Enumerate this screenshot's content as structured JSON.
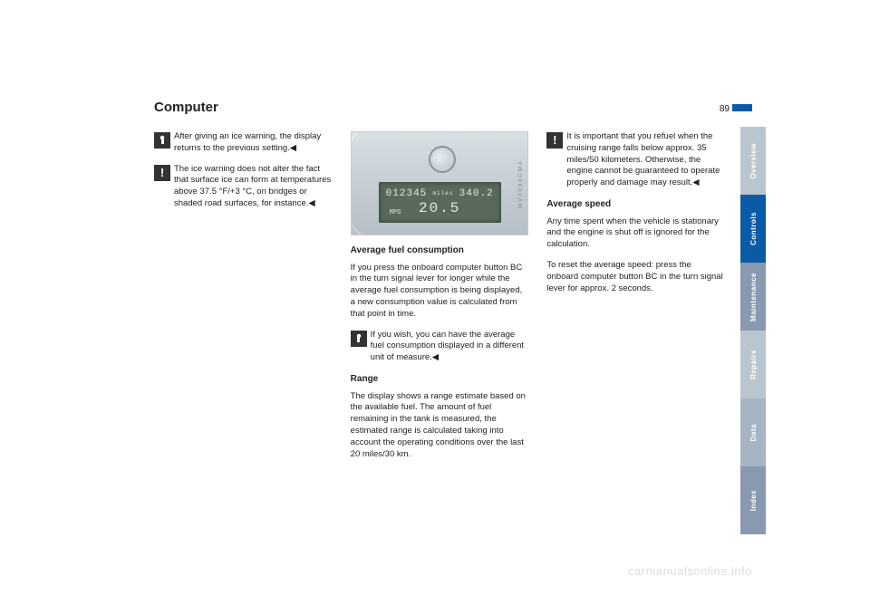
{
  "page": {
    "title": "Computer",
    "number": "89"
  },
  "col1": {
    "p1": "After giving an ice warning, the display returns to the previous setting.◀",
    "p2": "The ice warning does not alter the fact that surface ice can form at temperatures above 37.5 °F/+3 °C, on bridges or shaded road surfaces, for instance.◀"
  },
  "dash": {
    "line1_left": "012345",
    "line1_mid": "miles",
    "line1_right": "340.2",
    "line2": "20.5",
    "unit": "MPG",
    "ref": "MV0098CMA"
  },
  "col2": {
    "h1": "Average fuel consumption",
    "p1": "If you press the onboard computer button BC in the turn signal lever for longer while the average fuel consumption is being displayed, a new consumption value is calculated from that point in time.",
    "p2": "If you wish, you can have the average fuel consumption displayed in a different unit of measure.◀",
    "h2": "Range",
    "p3": "The display shows a range estimate based on the available fuel. The amount of fuel remaining in the tank is measured, the estimated range is calculated taking into account the operating conditions over the last 20 miles/30 km."
  },
  "col3": {
    "p1": "It is important that you refuel when the cruising range falls below approx. 35 miles/50 kilometers. Otherwise, the engine cannot be guaranteed to operate properly and damage may result.◀",
    "h1": "Average speed",
    "p2": "Any time spent when the vehicle is stationary and the engine is shut off is ignored for the calculation.",
    "p3": "To reset the average speed: press the onboard computer button BC in the turn signal lever for approx. 2 seconds."
  },
  "tabs": [
    {
      "label": "Overview",
      "bg": "#b9c6d0",
      "fg": "#ffffff"
    },
    {
      "label": "Controls",
      "bg": "#0b5aa6",
      "fg": "#ffffff"
    },
    {
      "label": "Maintenance",
      "bg": "#8899b0",
      "fg": "#ffffff"
    },
    {
      "label": "Repairs",
      "bg": "#b9c6d0",
      "fg": "#ffffff"
    },
    {
      "label": "Data",
      "bg": "#a6b4c4",
      "fg": "#ffffff"
    },
    {
      "label": "Index",
      "bg": "#8899b0",
      "fg": "#ffffff"
    }
  ],
  "watermark": "carmanualsonline.info"
}
